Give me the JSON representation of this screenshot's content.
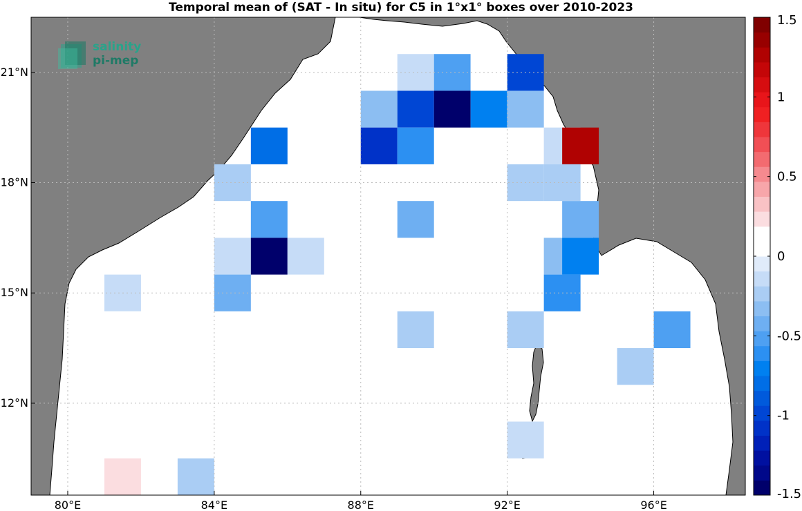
{
  "title": "Temporal mean of (SAT - In situ) for C5 in 1°x1° boxes over 2010-2023",
  "logo": {
    "line1": "salinity",
    "line2": "pi-mep"
  },
  "map_extent": {
    "lon": [
      79,
      98.5
    ],
    "lat": [
      9.5,
      22.5
    ]
  },
  "colors": {
    "land": "#808080",
    "ocean": "#ffffff",
    "coast": "#000000",
    "grid": "#bbbbbb"
  },
  "x_ticks": [
    {
      "lon": 80,
      "label": "80°E"
    },
    {
      "lon": 84,
      "label": "84°E"
    },
    {
      "lon": 88,
      "label": "88°E"
    },
    {
      "lon": 92,
      "label": "92°E"
    },
    {
      "lon": 96,
      "label": "96°E"
    }
  ],
  "y_ticks": [
    {
      "lat": 21,
      "label": "21°N"
    },
    {
      "lat": 18,
      "label": "18°N"
    },
    {
      "lat": 15,
      "label": "15°N"
    },
    {
      "lat": 12,
      "label": "12°N"
    }
  ],
  "colorbar": {
    "range": [
      -1.5,
      1.5
    ],
    "ticks": [
      {
        "value": 1.5,
        "label": "1.5"
      },
      {
        "value": 1,
        "label": "1"
      },
      {
        "value": 0.5,
        "label": "0.5"
      },
      {
        "value": 0,
        "label": "0"
      },
      {
        "value": -0.5,
        "label": "-0.5"
      },
      {
        "value": -1,
        "label": "-1"
      },
      {
        "value": -1.5,
        "label": "-1.5"
      }
    ],
    "colors": [
      "#00006b",
      "#00088a",
      "#0010a0",
      "#0020b8",
      "#0032c8",
      "#0046d4",
      "#005adc",
      "#006ee6",
      "#0080f0",
      "#2c90f2",
      "#4ea0f2",
      "#6eaff2",
      "#8cbef2",
      "#aacdf4",
      "#c6dcf7",
      "#e0ebfa",
      "#ffffff",
      "#ffffff",
      "#fbdde0",
      "#f9c2c5",
      "#f7a6aa",
      "#f58a8f",
      "#f36b70",
      "#f14f55",
      "#ef363b",
      "#f02022",
      "#e8151a",
      "#d60d10",
      "#c40608",
      "#b00202",
      "#980000",
      "#800000"
    ]
  },
  "chart_data": {
    "type": "heatmap",
    "title": "Temporal mean of (SAT - In situ) for C5 in 1°x1° boxes over 2010-2023",
    "xlabel": "",
    "ylabel": "",
    "units_note": "cell lon/lat are box centers in degrees",
    "cells": [
      {
        "lon": 89.5,
        "lat": 21.0,
        "value": -0.1
      },
      {
        "lon": 90.5,
        "lat": 21.0,
        "value": -0.5
      },
      {
        "lon": 91.5,
        "lat": 21.0,
        "value": 0.1
      },
      {
        "lon": 92.5,
        "lat": 21.0,
        "value": -1.0
      },
      {
        "lon": 88.5,
        "lat": 20.0,
        "value": -0.3
      },
      {
        "lon": 89.5,
        "lat": 20.0,
        "value": -1.0
      },
      {
        "lon": 90.5,
        "lat": 20.0,
        "value": -1.5
      },
      {
        "lon": 91.5,
        "lat": 20.0,
        "value": -0.7
      },
      {
        "lon": 92.5,
        "lat": 20.0,
        "value": -0.3
      },
      {
        "lon": 85.5,
        "lat": 19.0,
        "value": -0.8
      },
      {
        "lon": 88.5,
        "lat": 19.0,
        "value": -1.1
      },
      {
        "lon": 89.5,
        "lat": 19.0,
        "value": -0.6
      },
      {
        "lon": 93.5,
        "lat": 19.0,
        "value": -0.1
      },
      {
        "lon": 94.0,
        "lat": 19.0,
        "value": 1.3
      },
      {
        "lon": 84.5,
        "lat": 18.0,
        "value": -0.25
      },
      {
        "lon": 92.5,
        "lat": 18.0,
        "value": -0.25
      },
      {
        "lon": 93.5,
        "lat": 18.0,
        "value": -0.25
      },
      {
        "lon": 85.5,
        "lat": 17.0,
        "value": -0.55
      },
      {
        "lon": 89.5,
        "lat": 17.0,
        "value": -0.4
      },
      {
        "lon": 94.0,
        "lat": 17.0,
        "value": -0.45
      },
      {
        "lon": 84.5,
        "lat": 16.0,
        "value": -0.1
      },
      {
        "lon": 85.5,
        "lat": 16.0,
        "value": -1.5
      },
      {
        "lon": 86.5,
        "lat": 16.0,
        "value": -0.1
      },
      {
        "lon": 93.5,
        "lat": 16.0,
        "value": -0.35
      },
      {
        "lon": 94.0,
        "lat": 16.0,
        "value": -0.75
      },
      {
        "lon": 81.5,
        "lat": 15.0,
        "value": -0.1
      },
      {
        "lon": 84.5,
        "lat": 15.0,
        "value": -0.45
      },
      {
        "lon": 93.5,
        "lat": 15.0,
        "value": -0.65
      },
      {
        "lon": 81.5,
        "lat": 14.0,
        "value": 0.1
      },
      {
        "lon": 89.5,
        "lat": 14.0,
        "value": -0.25
      },
      {
        "lon": 92.5,
        "lat": 14.0,
        "value": -0.25
      },
      {
        "lon": 96.5,
        "lat": 14.0,
        "value": -0.55
      },
      {
        "lon": 95.5,
        "lat": 13.0,
        "value": -0.25
      },
      {
        "lon": 81.5,
        "lat": 12.0,
        "value": 0.1
      },
      {
        "lon": 81.5,
        "lat": 11.0,
        "value": 0.1
      },
      {
        "lon": 92.5,
        "lat": 11.0,
        "value": -0.1
      },
      {
        "lon": 81.5,
        "lat": 10.0,
        "value": 0.25
      },
      {
        "lon": 83.5,
        "lat": 10.0,
        "value": -0.25
      }
    ]
  }
}
